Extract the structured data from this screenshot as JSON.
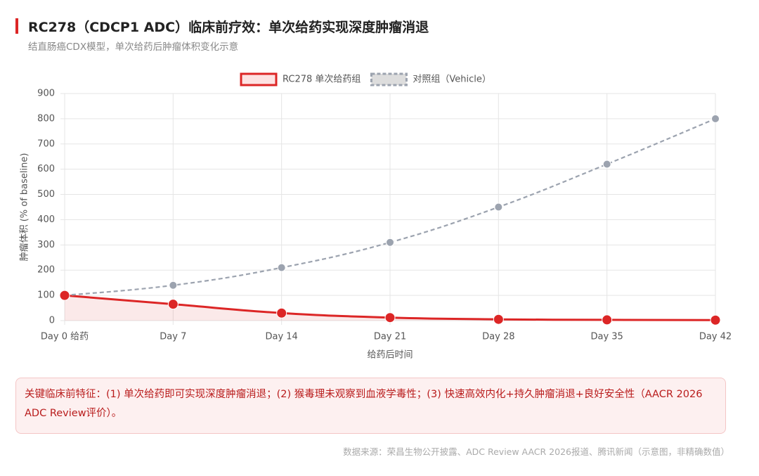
{
  "chart_data": {
    "type": "line",
    "title": "RC278（CDCP1 ADC）临床前疗效：单次给药实现深度肿瘤消退",
    "subtitle": "结直肠癌CDX模型，单次给药后肿瘤体积变化示意",
    "y_label": "肿瘤体积 (% of baseline)",
    "x_label": "给药后时间",
    "categories": [
      "Day 0 给药",
      "Day 7",
      "Day 14",
      "Day 21",
      "Day 28",
      "Day 35",
      "Day 42"
    ],
    "series": [
      {
        "name": "RC278 单次给药组",
        "color": "#dc2626",
        "dashed": false,
        "fill": true,
        "values": [
          100,
          65,
          30,
          12,
          5,
          3,
          2
        ]
      },
      {
        "name": "对照组（Vehicle）",
        "color": "#9ca3af",
        "dashed": true,
        "fill": false,
        "values": [
          100,
          140,
          210,
          310,
          450,
          620,
          800
        ]
      }
    ],
    "ylim": [
      0,
      900
    ],
    "yticks": [
      0,
      100,
      200,
      300,
      400,
      500,
      600,
      700,
      800,
      900
    ],
    "grid": true,
    "note": "关键临床前特征：(1) 单次给药即可实现深度肿瘤消退；(2) 猴毒理未观察到血液学毒性；(3) 快速高效内化+持久肿瘤消退+良好安全性（AACR 2026 ADC Review评价）。",
    "source": "数据来源：荣昌生物公开披露、ADC Review AACR 2026报道、腾讯新闻（示意图，非精确数值）"
  }
}
